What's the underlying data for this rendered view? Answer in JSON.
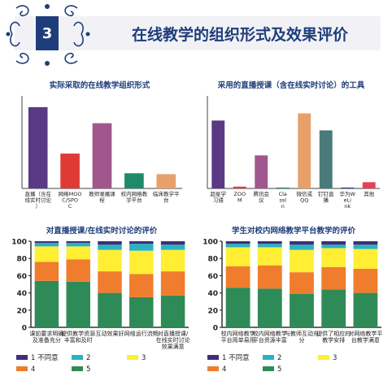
{
  "header": {
    "number": "3",
    "title": "在线教学的组织形式及效果评价"
  },
  "chart_data": [
    {
      "type": "bar",
      "title": "实际采取的在线教学组织形式",
      "categories": [
        "直播（含在线实时讨论）",
        "网络MOOC/SPOC",
        "教师录播课程",
        "校内网络教学平台",
        "临床教学平台"
      ],
      "values": [
        91,
        39,
        73,
        17,
        16
      ],
      "colors": [
        "#5a3a85",
        "#e03a36",
        "#a0578e",
        "#1f8a6a",
        "#e8a06a"
      ],
      "ylim": [
        0,
        100
      ]
    },
    {
      "type": "bar",
      "title": "采用的直播授课（含在线实时讨论）的工具",
      "categories": [
        "超星学习通",
        "ZOOM",
        "腾讯会议",
        "ClassIn",
        "微信或QQ",
        "钉钉直播",
        "华为WeLink",
        "其他"
      ],
      "values": [
        76,
        2,
        37,
        1,
        84,
        65,
        1,
        7
      ],
      "colors": [
        "#5a3a85",
        "#e03a36",
        "#a0578e",
        "#1f8a6a",
        "#e8a06a",
        "#4a7a7a",
        "#1f3d7a",
        "#e8405a"
      ],
      "ylim": [
        0,
        100
      ]
    },
    {
      "type": "bar",
      "stacked": true,
      "title": "对直播授课/在线实时讨论的评价",
      "categories": [
        "课前要求明确及准备充分",
        "提供教学资源丰富和及时",
        "互动效果好",
        "网络运行流畅",
        "对直播授课/在线实时讨论效果满意"
      ],
      "yticks": [
        "0",
        "20",
        "40",
        "60",
        "80",
        "100"
      ],
      "ylim": [
        0,
        100
      ],
      "series": [
        {
          "name": "5",
          "color": "#2e8b57",
          "values": [
            54,
            53,
            40,
            35,
            37
          ]
        },
        {
          "name": "4",
          "color": "#f07d2d",
          "values": [
            22,
            26,
            25,
            27,
            28
          ]
        },
        {
          "name": "3",
          "color": "#ffee33",
          "values": [
            18,
            15,
            25,
            27,
            25
          ]
        },
        {
          "name": "2",
          "color": "#29b3c2",
          "values": [
            4,
            4,
            6,
            8,
            6
          ]
        },
        {
          "name": "1 不同意",
          "color": "#3d2f7a",
          "values": [
            2,
            2,
            4,
            3,
            4
          ]
        }
      ]
    },
    {
      "type": "bar",
      "stacked": true,
      "title": "学生对校内网络教学平台教学的评价",
      "categories": [
        "校内网络教学平台简单易用",
        "校内网络教学平台资源丰富",
        "与教师互动充分",
        "提供了相应的教学安排",
        "对网络教学平台教学满意"
      ],
      "yticks": [
        "0",
        "20",
        "40",
        "60",
        "80",
        "100"
      ],
      "ylim": [
        0,
        100
      ],
      "series": [
        {
          "name": "5",
          "color": "#2e8b57",
          "values": [
            46,
            45,
            39,
            44,
            40
          ]
        },
        {
          "name": "4",
          "color": "#f07d2d",
          "values": [
            25,
            27,
            25,
            26,
            28
          ]
        },
        {
          "name": "3",
          "color": "#ffee33",
          "values": [
            22,
            21,
            26,
            22,
            23
          ]
        },
        {
          "name": "2",
          "color": "#29b3c2",
          "values": [
            4,
            4,
            6,
            4,
            5
          ]
        },
        {
          "name": "1 不同意",
          "color": "#3d2f7a",
          "values": [
            3,
            3,
            4,
            4,
            4
          ]
        }
      ]
    }
  ]
}
